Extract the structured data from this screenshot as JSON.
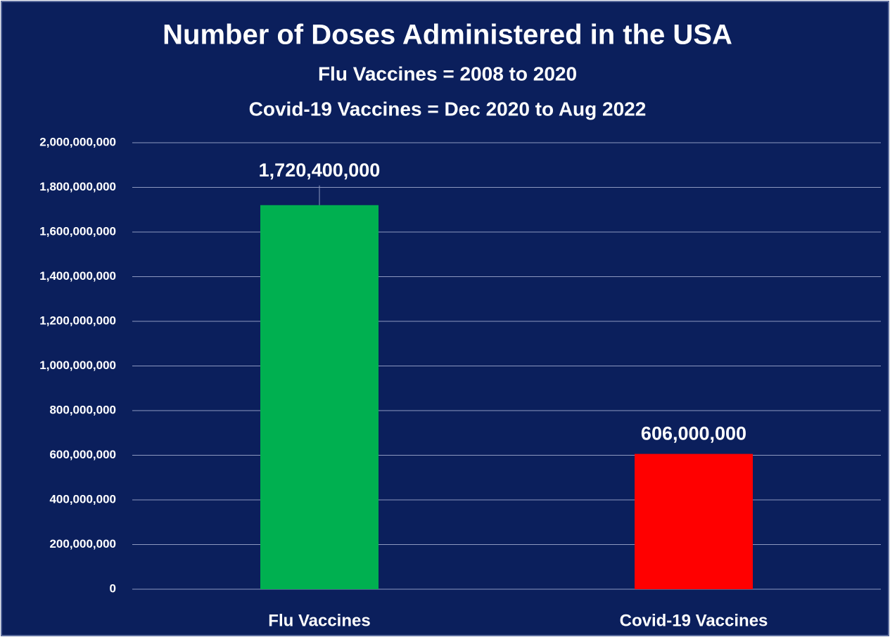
{
  "chart_data": {
    "type": "bar",
    "title": "Number of Doses Administered in the USA",
    "subtitle": [
      "Flu Vaccines = 2008 to 2020",
      "Covid-19 Vaccines = Dec 2020 to Aug 2022"
    ],
    "categories": [
      "Flu Vaccines",
      "Covid-19 Vaccines"
    ],
    "values": [
      1720400000,
      606000000
    ],
    "value_labels": [
      "1,720,400,000",
      "606,000,000"
    ],
    "colors": [
      "#00b050",
      "#ff0000"
    ],
    "ylim": [
      0,
      2000000000
    ],
    "yticks": [
      0,
      {
        "value": 200000000,
        "label": "200,000,000"
      },
      {
        "value": 400000000,
        "label": "400,000,000"
      },
      {
        "value": 600000000,
        "label": "600,000,000"
      },
      {
        "value": 800000000,
        "label": "800,000,000"
      },
      {
        "value": 1000000000,
        "label": "1,000,000,000"
      },
      {
        "value": 1200000000,
        "label": "1,200,000,000"
      },
      {
        "value": 1400000000,
        "label": "1,400,000,000"
      },
      {
        "value": 1600000000,
        "label": "1,600,000,000"
      },
      {
        "value": 1800000000,
        "label": "1,800,000,000"
      },
      {
        "value": 2000000000,
        "label": "2,000,000,000"
      }
    ],
    "grid": true
  }
}
